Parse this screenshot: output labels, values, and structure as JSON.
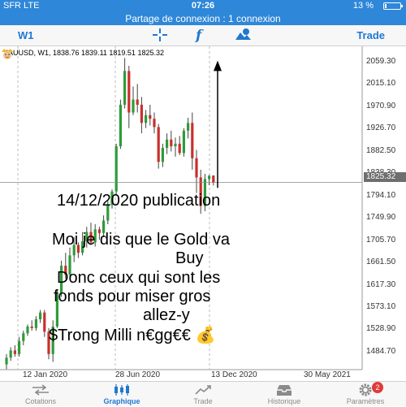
{
  "status_bar": {
    "carrier": "SFR  LTE",
    "time": "07:26",
    "battery_text": "13 %",
    "battery_level": 0.13
  },
  "hotspot": {
    "text": "Partage de connexion : 1 connexion"
  },
  "toolbar": {
    "timeframe": "W1",
    "trade_label": "Trade",
    "icons": [
      "crosshair-icon",
      "function-icon",
      "objects-icon"
    ],
    "accent_color": "#1f78d1"
  },
  "chart": {
    "header": "XAUUSD, W1, 1838.76 1839.11 1819.51 1825.32",
    "current_price": "1825.32",
    "price_axis": [
      "2059.30",
      "2015.10",
      "1970.90",
      "1926.70",
      "1882.50",
      "1838.30",
      "1794.10",
      "1749.90",
      "1705.70",
      "1661.50",
      "1617.30",
      "1573.10",
      "1528.90",
      "1484.70"
    ],
    "date_axis": [
      "12 Jan 2020",
      "28 Jun 2020",
      "13 Dec 2020",
      "30 May 2021"
    ],
    "bull_color": "#2e9b3a",
    "bear_color": "#c8302c"
  },
  "chart_data": {
    "type": "candlestick",
    "title": "XAUUSD, W1, 1838.76 1839.11 1819.51 1825.32",
    "ylim": [
      1465,
      2075
    ],
    "series": [
      {
        "name": "XAUUSD",
        "ohlc": [
          [
            1475,
            1495,
            1466,
            1488
          ],
          [
            1488,
            1508,
            1482,
            1502
          ],
          [
            1502,
            1512,
            1490,
            1495
          ],
          [
            1495,
            1528,
            1490,
            1520
          ],
          [
            1520,
            1540,
            1512,
            1535
          ],
          [
            1535,
            1552,
            1530,
            1548
          ],
          [
            1548,
            1560,
            1540,
            1545
          ],
          [
            1545,
            1568,
            1540,
            1562
          ],
          [
            1562,
            1580,
            1555,
            1575
          ],
          [
            1575,
            1580,
            1528,
            1538
          ],
          [
            1538,
            1545,
            1485,
            1495
          ],
          [
            1495,
            1560,
            1480,
            1548
          ],
          [
            1548,
            1620,
            1545,
            1612
          ],
          [
            1612,
            1675,
            1605,
            1665
          ],
          [
            1665,
            1690,
            1640,
            1648
          ],
          [
            1648,
            1700,
            1640,
            1685
          ],
          [
            1685,
            1720,
            1672,
            1705
          ],
          [
            1705,
            1710,
            1680,
            1690
          ],
          [
            1690,
            1730,
            1685,
            1712
          ],
          [
            1712,
            1740,
            1700,
            1730
          ],
          [
            1730,
            1748,
            1705,
            1710
          ],
          [
            1710,
            1745,
            1702,
            1735
          ],
          [
            1735,
            1740,
            1715,
            1728
          ],
          [
            1728,
            1762,
            1720,
            1752
          ],
          [
            1752,
            1790,
            1745,
            1782
          ],
          [
            1782,
            1812,
            1775,
            1808
          ],
          [
            1808,
            1900,
            1800,
            1895
          ],
          [
            1895,
            1985,
            1890,
            1975
          ],
          [
            1975,
            2065,
            1968,
            2040
          ],
          [
            2040,
            2050,
            1930,
            1960
          ],
          [
            1960,
            2010,
            1955,
            1985
          ],
          [
            1985,
            2015,
            1960,
            1975
          ],
          [
            1975,
            1990,
            1920,
            1940
          ],
          [
            1940,
            1965,
            1930,
            1955
          ],
          [
            1955,
            1975,
            1935,
            1948
          ],
          [
            1948,
            1960,
            1920,
            1932
          ],
          [
            1932,
            1938,
            1852,
            1865
          ],
          [
            1865,
            1900,
            1855,
            1892
          ],
          [
            1892,
            1920,
            1880,
            1908
          ],
          [
            1908,
            1925,
            1885,
            1895
          ],
          [
            1895,
            1912,
            1875,
            1900
          ],
          [
            1900,
            1915,
            1878,
            1882
          ],
          [
            1882,
            1930,
            1875,
            1925
          ],
          [
            1925,
            1950,
            1910,
            1940
          ],
          [
            1940,
            1960,
            1850,
            1872
          ],
          [
            1872,
            1888,
            1805,
            1835
          ],
          [
            1835,
            1850,
            1765,
            1780
          ],
          [
            1780,
            1842,
            1770,
            1832
          ],
          [
            1832,
            1840,
            1820,
            1838
          ],
          [
            1838.76,
            1839.11,
            1819.51,
            1825.32
          ]
        ]
      }
    ]
  },
  "overlay": {
    "lines": [
      "14/12/2020 publication",
      "",
      "Moi je dis que le Gold va",
      "Buy",
      "Donc ceux qui sont les",
      "fonds pour miser gros",
      "allez-y",
      "$Trong Milli n€gg€€ 💰"
    ]
  },
  "tabs": [
    {
      "label": "Cotations",
      "icon": "quotes-icon",
      "active": false
    },
    {
      "label": "Graphique",
      "icon": "chart-icon",
      "active": true
    },
    {
      "label": "Trade",
      "icon": "trade-icon",
      "active": false
    },
    {
      "label": "Historique",
      "icon": "history-icon",
      "active": false
    },
    {
      "label": "Paramètres",
      "icon": "settings-icon",
      "active": false,
      "badge": "2"
    }
  ]
}
